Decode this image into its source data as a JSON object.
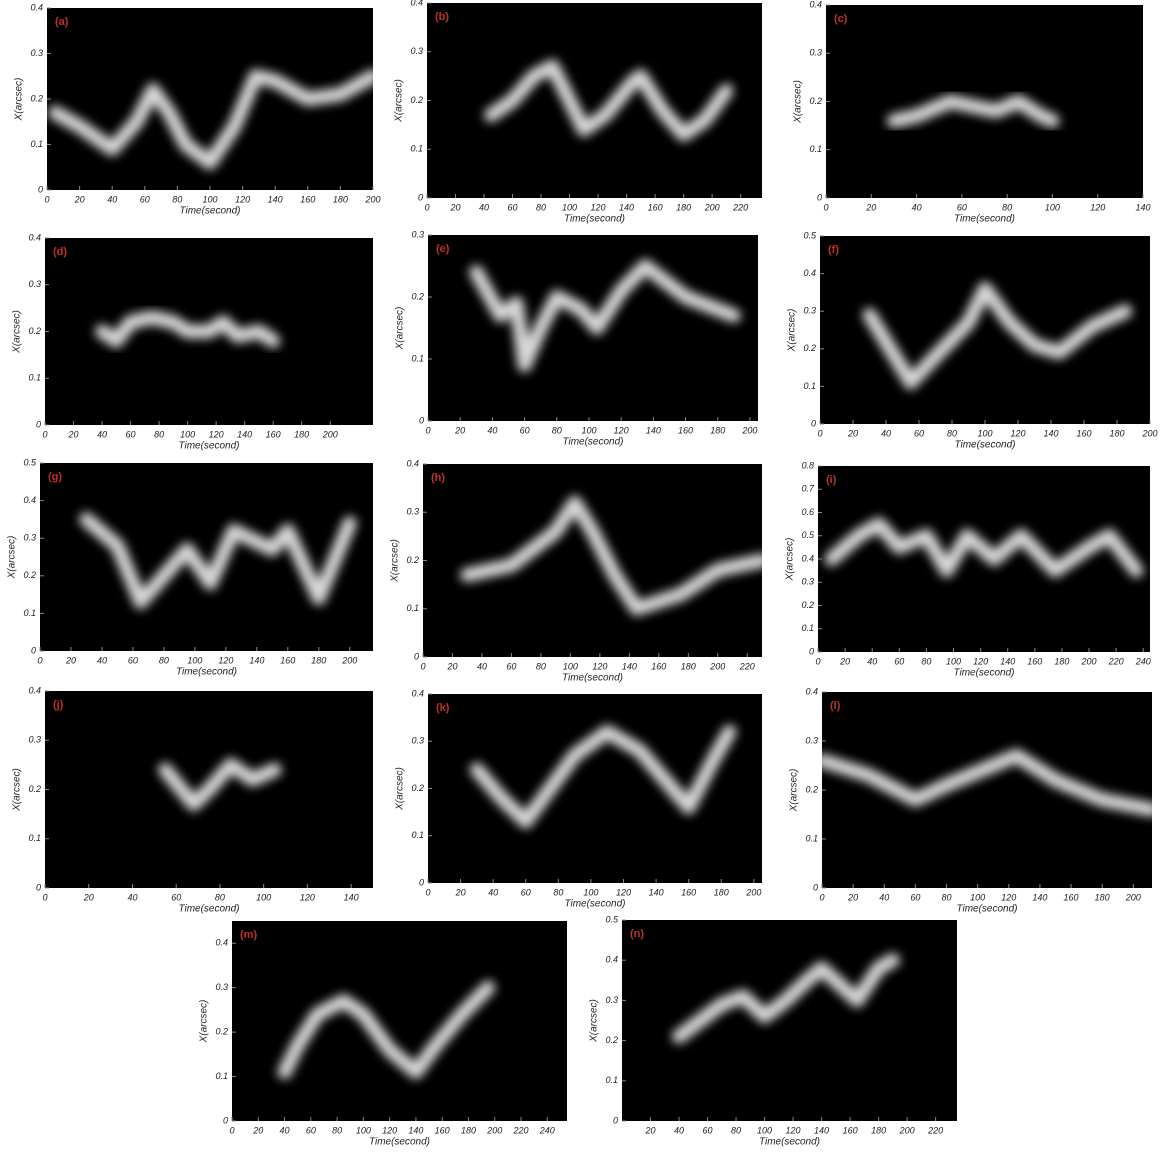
{
  "chart_data": [
    {
      "type": "line",
      "label": "(a)",
      "x_label": "Time(second)",
      "y_label": "X(arcsec)",
      "xlim": [
        0,
        200
      ],
      "ylim": [
        0,
        0.4
      ],
      "xticks": [
        0,
        20,
        40,
        60,
        80,
        100,
        120,
        140,
        160,
        180,
        200
      ],
      "yticks": [
        0,
        0.1,
        0.2,
        0.3,
        0.4
      ],
      "color": "#ffffff",
      "x": [
        5,
        20,
        40,
        55,
        65,
        75,
        85,
        100,
        115,
        128,
        140,
        160,
        180,
        200
      ],
      "values": [
        0.17,
        0.14,
        0.09,
        0.15,
        0.22,
        0.17,
        0.1,
        0.06,
        0.14,
        0.25,
        0.24,
        0.2,
        0.21,
        0.25
      ]
    },
    {
      "type": "line",
      "label": "(b)",
      "x_label": "Time(second)",
      "y_label": "X(arcsec)",
      "xlim": [
        0,
        235
      ],
      "ylim": [
        0,
        0.4
      ],
      "xticks": [
        0,
        20,
        40,
        60,
        80,
        100,
        120,
        140,
        160,
        180,
        200,
        220
      ],
      "yticks": [
        0,
        0.1,
        0.2,
        0.3,
        0.4
      ],
      "color": "#ffffff",
      "x": [
        45,
        60,
        75,
        88,
        100,
        110,
        125,
        145,
        150,
        165,
        180,
        195,
        205,
        210
      ],
      "values": [
        0.17,
        0.2,
        0.25,
        0.27,
        0.2,
        0.14,
        0.17,
        0.24,
        0.25,
        0.18,
        0.13,
        0.16,
        0.2,
        0.22
      ]
    },
    {
      "type": "line",
      "label": "(c)",
      "x_label": "Time(second)",
      "y_label": "X(arcsec)",
      "xlim": [
        0,
        140
      ],
      "ylim": [
        0,
        0.4
      ],
      "xticks": [
        0,
        20,
        40,
        60,
        80,
        100,
        120,
        140
      ],
      "yticks": [
        0,
        0.1,
        0.2,
        0.3,
        0.4
      ],
      "color": "#ffffff",
      "x": [
        30,
        40,
        55,
        65,
        75,
        85,
        95,
        100
      ],
      "values": [
        0.16,
        0.17,
        0.2,
        0.19,
        0.18,
        0.2,
        0.17,
        0.16
      ]
    },
    {
      "type": "line",
      "label": "(d)",
      "x_label": "Time(second)",
      "y_label": "X(arcsec)",
      "xlim": [
        0,
        230
      ],
      "ylim": [
        0,
        0.4
      ],
      "xticks": [
        0,
        20,
        40,
        60,
        80,
        100,
        120,
        140,
        160,
        180,
        200
      ],
      "yticks": [
        0,
        0.1,
        0.2,
        0.3,
        0.4
      ],
      "color": "#ffffff",
      "x": [
        40,
        50,
        60,
        75,
        90,
        100,
        115,
        125,
        135,
        150,
        160
      ],
      "values": [
        0.2,
        0.18,
        0.22,
        0.23,
        0.22,
        0.2,
        0.2,
        0.22,
        0.19,
        0.2,
        0.18
      ]
    },
    {
      "type": "line",
      "label": "(e)",
      "x_label": "Time(second)",
      "y_label": "X(arcsec)",
      "xlim": [
        0,
        205
      ],
      "ylim": [
        0,
        0.3
      ],
      "xticks": [
        0,
        20,
        40,
        60,
        80,
        100,
        120,
        140,
        160,
        180,
        200
      ],
      "yticks": [
        0,
        0.1,
        0.2,
        0.3
      ],
      "color": "#ffffff",
      "x": [
        30,
        45,
        55,
        60,
        70,
        80,
        95,
        105,
        120,
        135,
        160,
        190
      ],
      "values": [
        0.24,
        0.17,
        0.19,
        0.09,
        0.15,
        0.2,
        0.18,
        0.15,
        0.21,
        0.25,
        0.2,
        0.17
      ]
    },
    {
      "type": "line",
      "label": "(f)",
      "x_label": "Time(second)",
      "y_label": "X(arcsec)",
      "xlim": [
        0,
        200
      ],
      "ylim": [
        0,
        0.5
      ],
      "xticks": [
        0,
        20,
        40,
        60,
        80,
        100,
        120,
        140,
        160,
        180,
        200
      ],
      "yticks": [
        0,
        0.1,
        0.2,
        0.3,
        0.4,
        0.5
      ],
      "color": "#ffffff",
      "x": [
        30,
        55,
        70,
        90,
        100,
        115,
        130,
        145,
        165,
        185
      ],
      "values": [
        0.29,
        0.11,
        0.18,
        0.27,
        0.36,
        0.27,
        0.21,
        0.19,
        0.26,
        0.3
      ]
    },
    {
      "type": "line",
      "label": "(g)",
      "x_label": "Time(second)",
      "y_label": "X(arcsec)",
      "xlim": [
        0,
        215
      ],
      "ylim": [
        0,
        0.5
      ],
      "xticks": [
        0,
        20,
        40,
        60,
        80,
        100,
        120,
        140,
        160,
        180,
        200
      ],
      "yticks": [
        0,
        0.1,
        0.2,
        0.3,
        0.4,
        0.5
      ],
      "color": "#ffffff",
      "x": [
        30,
        50,
        65,
        95,
        110,
        125,
        150,
        160,
        180,
        200
      ],
      "values": [
        0.35,
        0.28,
        0.13,
        0.27,
        0.18,
        0.32,
        0.27,
        0.32,
        0.14,
        0.34
      ]
    },
    {
      "type": "line",
      "label": "(h)",
      "x_label": "Time(second)",
      "y_label": "X(arcsec)",
      "xlim": [
        0,
        230
      ],
      "ylim": [
        0,
        0.4
      ],
      "xticks": [
        0,
        20,
        40,
        60,
        80,
        100,
        120,
        140,
        160,
        180,
        200,
        220
      ],
      "yticks": [
        0,
        0.1,
        0.2,
        0.3,
        0.4
      ],
      "color": "#ffffff",
      "x": [
        30,
        60,
        90,
        103,
        115,
        130,
        145,
        175,
        200,
        230
      ],
      "values": [
        0.17,
        0.19,
        0.26,
        0.32,
        0.26,
        0.17,
        0.1,
        0.13,
        0.18,
        0.2
      ]
    },
    {
      "type": "line",
      "label": "(i)",
      "x_label": "Time(second)",
      "y_label": "X(arcsec)",
      "xlim": [
        0,
        245
      ],
      "ylim": [
        0,
        0.8
      ],
      "xticks": [
        0,
        20,
        40,
        60,
        80,
        100,
        120,
        140,
        160,
        180,
        200,
        220,
        240
      ],
      "yticks": [
        0,
        0.1,
        0.2,
        0.3,
        0.4,
        0.5,
        0.6,
        0.7,
        0.8
      ],
      "color": "#ffffff",
      "x": [
        10,
        30,
        45,
        60,
        80,
        95,
        110,
        130,
        150,
        175,
        200,
        215,
        235
      ],
      "values": [
        0.4,
        0.5,
        0.55,
        0.45,
        0.5,
        0.35,
        0.5,
        0.4,
        0.5,
        0.35,
        0.45,
        0.5,
        0.35
      ]
    },
    {
      "type": "line",
      "label": "(j)",
      "x_label": "Time(second)",
      "y_label": "X(arcsec)",
      "xlim": [
        0,
        150
      ],
      "ylim": [
        0,
        0.4
      ],
      "xticks": [
        0,
        20,
        40,
        60,
        80,
        100,
        120,
        140
      ],
      "yticks": [
        0,
        0.1,
        0.2,
        0.3,
        0.4
      ],
      "color": "#ffffff",
      "x": [
        55,
        68,
        75,
        85,
        95,
        105
      ],
      "values": [
        0.24,
        0.17,
        0.2,
        0.25,
        0.22,
        0.24
      ]
    },
    {
      "type": "line",
      "label": "(k)",
      "x_label": "Time(second)",
      "y_label": "X(arcsec)",
      "xlim": [
        0,
        205
      ],
      "ylim": [
        0,
        0.4
      ],
      "xticks": [
        0,
        20,
        40,
        60,
        80,
        100,
        120,
        140,
        160,
        180,
        200
      ],
      "yticks": [
        0,
        0.1,
        0.2,
        0.3,
        0.4
      ],
      "color": "#ffffff",
      "x": [
        30,
        45,
        60,
        75,
        90,
        110,
        130,
        150,
        160,
        175,
        185
      ],
      "values": [
        0.24,
        0.18,
        0.13,
        0.2,
        0.27,
        0.32,
        0.28,
        0.2,
        0.16,
        0.26,
        0.32
      ]
    },
    {
      "type": "line",
      "label": "(l)",
      "x_label": "Time(second)",
      "y_label": "X(arcsec)",
      "xlim": [
        0,
        212
      ],
      "ylim": [
        0,
        0.4
      ],
      "xticks": [
        0,
        20,
        40,
        60,
        80,
        100,
        120,
        140,
        160,
        180,
        200
      ],
      "yticks": [
        0,
        0.1,
        0.2,
        0.3,
        0.4
      ],
      "color": "#ffffff",
      "x": [
        0,
        30,
        60,
        80,
        110,
        125,
        150,
        180,
        212
      ],
      "values": [
        0.26,
        0.23,
        0.18,
        0.21,
        0.25,
        0.27,
        0.22,
        0.18,
        0.16
      ]
    },
    {
      "type": "line",
      "label": "(m)",
      "x_label": "Time(second)",
      "y_label": "X(arcsec)",
      "xlim": [
        0,
        255
      ],
      "ylim": [
        0,
        0.45
      ],
      "xticks": [
        0,
        20,
        40,
        60,
        80,
        100,
        120,
        140,
        160,
        180,
        200,
        220,
        240
      ],
      "yticks": [
        0,
        0.1,
        0.2,
        0.3,
        0.4
      ],
      "color": "#ffffff",
      "x": [
        40,
        50,
        65,
        85,
        100,
        120,
        140,
        155,
        175,
        195
      ],
      "values": [
        0.11,
        0.17,
        0.24,
        0.27,
        0.24,
        0.16,
        0.11,
        0.17,
        0.24,
        0.3
      ]
    },
    {
      "type": "line",
      "label": "(n)",
      "x_label": "Time(second)",
      "y_label": "X(arcsec)",
      "xlim": [
        0,
        235
      ],
      "ylim": [
        0,
        0.5
      ],
      "xticks": [
        20,
        40,
        60,
        80,
        100,
        120,
        140,
        160,
        180,
        200,
        220
      ],
      "yticks": [
        0,
        0.1,
        0.2,
        0.3,
        0.4,
        0.5
      ],
      "color": "#ffffff",
      "x": [
        40,
        55,
        70,
        85,
        100,
        115,
        130,
        140,
        165,
        180,
        190
      ],
      "values": [
        0.21,
        0.25,
        0.29,
        0.31,
        0.26,
        0.3,
        0.35,
        0.38,
        0.3,
        0.38,
        0.4
      ]
    }
  ]
}
